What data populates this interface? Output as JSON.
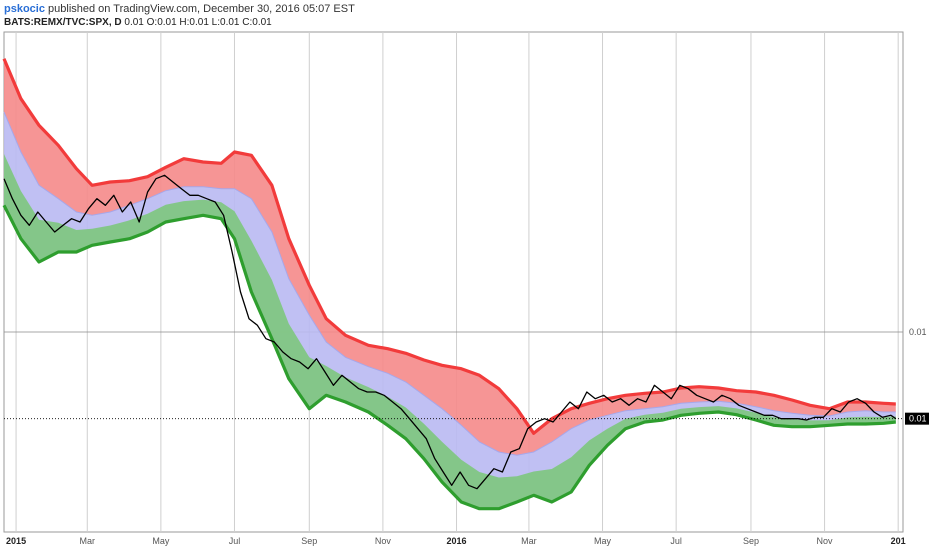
{
  "header": {
    "author": "pskocic",
    "published": "published on TradingView.com, December 30, 2016 05:07 EST",
    "symbol": "BATS:REMX/TVC:SPX, D",
    "ohlc": "0.01 O:0.01 H:0.01 L:0.01 C:0.01"
  },
  "colors": {
    "upper_band": "#f23b3b",
    "lower_band": "#2e9e2e",
    "upper_fill": "#f58a8a",
    "mid_fill": "#b9b9f2",
    "lower_fill": "#7dc77d",
    "price_line": "#000000",
    "last_label_bg": "#000000"
  },
  "chart_data": {
    "type": "line",
    "title": "",
    "xlabel": "",
    "ylabel": "",
    "x_axis_type": "time",
    "x_range": [
      "2014-12-22",
      "2017-01-05"
    ],
    "y_range": [
      0.007,
      0.0145
    ],
    "grid": true,
    "x_ticks": [
      {
        "label": "2015",
        "date": "2015-01-01",
        "year": true
      },
      {
        "label": "Mar",
        "date": "2015-03-01"
      },
      {
        "label": "May",
        "date": "2015-05-01"
      },
      {
        "label": "Jul",
        "date": "2015-07-01"
      },
      {
        "label": "Sep",
        "date": "2015-09-01"
      },
      {
        "label": "Nov",
        "date": "2015-11-01"
      },
      {
        "label": "2016",
        "date": "2016-01-01",
        "year": true
      },
      {
        "label": "Mar",
        "date": "2016-03-01"
      },
      {
        "label": "May",
        "date": "2016-05-01"
      },
      {
        "label": "Jul",
        "date": "2016-07-01"
      },
      {
        "label": "Sep",
        "date": "2016-09-01"
      },
      {
        "label": "Nov",
        "date": "2016-11-01"
      },
      {
        "label": "201",
        "date": "2017-01-01",
        "year": true
      }
    ],
    "y_ticks": [
      {
        "label": "0.01",
        "value": 0.01
      }
    ],
    "last_value": {
      "label": "0.01",
      "value": 0.0087
    },
    "series": [
      {
        "role": "upper_band",
        "x": [
          "2014-12-22",
          "2015-01-05",
          "2015-01-20",
          "2015-02-05",
          "2015-02-20",
          "2015-03-05",
          "2015-03-20",
          "2015-04-05",
          "2015-04-20",
          "2015-05-05",
          "2015-05-20",
          "2015-06-05",
          "2015-06-20",
          "2015-07-01",
          "2015-07-15",
          "2015-08-01",
          "2015-08-15",
          "2015-09-01",
          "2015-09-15",
          "2015-10-01",
          "2015-10-20",
          "2015-11-05",
          "2015-11-20",
          "2015-12-05",
          "2015-12-20",
          "2016-01-05",
          "2016-01-20",
          "2016-02-05",
          "2016-02-20",
          "2016-03-05",
          "2016-03-20",
          "2016-04-05",
          "2016-04-20",
          "2016-05-05",
          "2016-05-20",
          "2016-06-05",
          "2016-06-20",
          "2016-07-05",
          "2016-07-20",
          "2016-08-05",
          "2016-08-20",
          "2016-09-05",
          "2016-09-20",
          "2016-10-05",
          "2016-10-20",
          "2016-11-05",
          "2016-11-20",
          "2016-12-05",
          "2016-12-20",
          "2016-12-30"
        ],
        "values": [
          0.0141,
          0.0135,
          0.0131,
          0.0128,
          0.01245,
          0.0122,
          0.01225,
          0.01227,
          0.01233,
          0.01247,
          0.0126,
          0.01255,
          0.01253,
          0.0127,
          0.01265,
          0.0122,
          0.0114,
          0.0107,
          0.0102,
          0.00995,
          0.0098,
          0.00975,
          0.00968,
          0.00958,
          0.0095,
          0.00945,
          0.00935,
          0.00915,
          0.00885,
          0.00848,
          0.0087,
          0.00885,
          0.00893,
          0.009,
          0.00905,
          0.00908,
          0.0091,
          0.00916,
          0.00918,
          0.00916,
          0.00912,
          0.0091,
          0.00905,
          0.00898,
          0.0089,
          0.00885,
          0.00895,
          0.00895,
          0.00893,
          0.00892
        ]
      },
      {
        "role": "middle_band",
        "x": [
          "2014-12-22",
          "2015-01-05",
          "2015-01-20",
          "2015-02-05",
          "2015-02-20",
          "2015-03-05",
          "2015-03-20",
          "2015-04-05",
          "2015-04-20",
          "2015-05-05",
          "2015-05-20",
          "2015-06-05",
          "2015-06-20",
          "2015-07-01",
          "2015-07-15",
          "2015-08-01",
          "2015-08-15",
          "2015-09-01",
          "2015-09-15",
          "2015-10-01",
          "2015-10-20",
          "2015-11-05",
          "2015-11-20",
          "2015-12-05",
          "2015-12-20",
          "2016-01-05",
          "2016-01-20",
          "2016-02-05",
          "2016-02-20",
          "2016-03-05",
          "2016-03-20",
          "2016-04-05",
          "2016-04-20",
          "2016-05-05",
          "2016-05-20",
          "2016-06-05",
          "2016-06-20",
          "2016-07-05",
          "2016-07-20",
          "2016-08-05",
          "2016-08-20",
          "2016-09-05",
          "2016-09-20",
          "2016-10-05",
          "2016-10-20",
          "2016-11-05",
          "2016-11-20",
          "2016-12-05",
          "2016-12-20",
          "2016-12-30"
        ],
        "values": [
          0.0133,
          0.0127,
          0.0122,
          0.012,
          0.0118,
          0.01175,
          0.0118,
          0.0119,
          0.012,
          0.01212,
          0.01218,
          0.01218,
          0.01215,
          0.01215,
          0.012,
          0.0115,
          0.0108,
          0.01025,
          0.00985,
          0.00962,
          0.00948,
          0.00938,
          0.00925,
          0.00905,
          0.00885,
          0.0086,
          0.00835,
          0.0082,
          0.00815,
          0.0082,
          0.00835,
          0.00855,
          0.00868,
          0.00875,
          0.00882,
          0.00885,
          0.00888,
          0.00893,
          0.00895,
          0.00896,
          0.00893,
          0.00888,
          0.00882,
          0.00878,
          0.00875,
          0.00874,
          0.0088,
          0.00882,
          0.0088,
          0.0088
        ]
      },
      {
        "role": "lower_band",
        "x": [
          "2014-12-22",
          "2015-01-05",
          "2015-01-20",
          "2015-02-05",
          "2015-02-20",
          "2015-03-05",
          "2015-03-20",
          "2015-04-05",
          "2015-04-20",
          "2015-05-05",
          "2015-05-20",
          "2015-06-05",
          "2015-06-20",
          "2015-07-01",
          "2015-07-15",
          "2015-08-01",
          "2015-08-15",
          "2015-09-01",
          "2015-09-15",
          "2015-10-01",
          "2015-10-20",
          "2015-11-05",
          "2015-11-20",
          "2015-12-05",
          "2015-12-20",
          "2016-01-05",
          "2016-01-20",
          "2016-02-05",
          "2016-02-20",
          "2016-03-05",
          "2016-03-20",
          "2016-04-05",
          "2016-04-20",
          "2016-05-05",
          "2016-05-20",
          "2016-06-05",
          "2016-06-20",
          "2016-07-05",
          "2016-07-20",
          "2016-08-05",
          "2016-08-20",
          "2016-09-05",
          "2016-09-20",
          "2016-10-05",
          "2016-10-20",
          "2016-11-05",
          "2016-11-20",
          "2016-12-05",
          "2016-12-20",
          "2016-12-30"
        ],
        "values": [
          0.0119,
          0.0114,
          0.01105,
          0.0112,
          0.0112,
          0.0113,
          0.01135,
          0.0114,
          0.0115,
          0.01165,
          0.0117,
          0.01175,
          0.0117,
          0.0114,
          0.0106,
          0.0099,
          0.0093,
          0.00885,
          0.00905,
          0.00895,
          0.0088,
          0.0086,
          0.0084,
          0.0081,
          0.00775,
          0.00745,
          0.00735,
          0.00735,
          0.00745,
          0.00755,
          0.00745,
          0.0076,
          0.008,
          0.0083,
          0.00855,
          0.00865,
          0.00868,
          0.00875,
          0.00878,
          0.0088,
          0.00876,
          0.00868,
          0.0086,
          0.00858,
          0.00858,
          0.0086,
          0.00862,
          0.00862,
          0.00863,
          0.00865
        ]
      },
      {
        "role": "price",
        "x": [
          "2014-12-22",
          "2014-12-29",
          "2015-01-05",
          "2015-01-12",
          "2015-01-19",
          "2015-01-26",
          "2015-02-02",
          "2015-02-09",
          "2015-02-16",
          "2015-02-23",
          "2015-03-02",
          "2015-03-09",
          "2015-03-16",
          "2015-03-23",
          "2015-03-30",
          "2015-04-06",
          "2015-04-13",
          "2015-04-20",
          "2015-04-27",
          "2015-05-04",
          "2015-05-11",
          "2015-05-18",
          "2015-05-25",
          "2015-06-01",
          "2015-06-08",
          "2015-06-15",
          "2015-06-22",
          "2015-06-29",
          "2015-07-06",
          "2015-07-13",
          "2015-07-20",
          "2015-07-27",
          "2015-08-03",
          "2015-08-10",
          "2015-08-17",
          "2015-08-24",
          "2015-08-31",
          "2015-09-07",
          "2015-09-14",
          "2015-09-21",
          "2015-09-28",
          "2015-10-05",
          "2015-10-12",
          "2015-10-19",
          "2015-10-26",
          "2015-11-02",
          "2015-11-09",
          "2015-11-16",
          "2015-11-23",
          "2015-11-30",
          "2015-12-07",
          "2015-12-14",
          "2015-12-21",
          "2015-12-28",
          "2016-01-04",
          "2016-01-11",
          "2016-01-18",
          "2016-01-25",
          "2016-02-01",
          "2016-02-08",
          "2016-02-15",
          "2016-02-22",
          "2016-02-29",
          "2016-03-07",
          "2016-03-14",
          "2016-03-21",
          "2016-03-28",
          "2016-04-04",
          "2016-04-11",
          "2016-04-18",
          "2016-04-25",
          "2016-05-02",
          "2016-05-09",
          "2016-05-16",
          "2016-05-23",
          "2016-05-30",
          "2016-06-06",
          "2016-06-13",
          "2016-06-20",
          "2016-06-27",
          "2016-07-04",
          "2016-07-11",
          "2016-07-18",
          "2016-07-25",
          "2016-08-01",
          "2016-08-08",
          "2016-08-15",
          "2016-08-22",
          "2016-08-29",
          "2016-09-05",
          "2016-09-12",
          "2016-09-19",
          "2016-09-26",
          "2016-10-03",
          "2016-10-10",
          "2016-10-17",
          "2016-10-24",
          "2016-10-31",
          "2016-11-07",
          "2016-11-14",
          "2016-11-21",
          "2016-11-28",
          "2016-12-05",
          "2016-12-12",
          "2016-12-19",
          "2016-12-26",
          "2016-12-30"
        ],
        "values": [
          0.0123,
          0.012,
          0.01175,
          0.0116,
          0.0118,
          0.01165,
          0.0115,
          0.0116,
          0.0117,
          0.01165,
          0.01185,
          0.012,
          0.0119,
          0.01205,
          0.0118,
          0.01195,
          0.01165,
          0.0121,
          0.0123,
          0.01235,
          0.01225,
          0.01215,
          0.01205,
          0.01205,
          0.012,
          0.01195,
          0.01175,
          0.0112,
          0.0106,
          0.0102,
          0.0101,
          0.0099,
          0.00985,
          0.0097,
          0.0096,
          0.00955,
          0.00945,
          0.0096,
          0.0094,
          0.0092,
          0.00935,
          0.00925,
          0.00915,
          0.0091,
          0.0091,
          0.00905,
          0.00895,
          0.00885,
          0.0087,
          0.00855,
          0.0084,
          0.0081,
          0.0079,
          0.0077,
          0.0079,
          0.0077,
          0.00765,
          0.0078,
          0.00795,
          0.0079,
          0.0082,
          0.00825,
          0.00855,
          0.00865,
          0.0087,
          0.00865,
          0.0088,
          0.00895,
          0.00885,
          0.0091,
          0.009,
          0.00905,
          0.00895,
          0.009,
          0.0089,
          0.009,
          0.00895,
          0.0092,
          0.0091,
          0.009,
          0.0092,
          0.00915,
          0.00905,
          0.009,
          0.00895,
          0.00905,
          0.009,
          0.0089,
          0.00885,
          0.0088,
          0.00875,
          0.00875,
          0.0087,
          0.0087,
          0.0087,
          0.00868,
          0.00872,
          0.00872,
          0.00885,
          0.0088,
          0.00895,
          0.009,
          0.00893,
          0.0088,
          0.00872,
          0.00875,
          0.0087
        ]
      }
    ]
  }
}
